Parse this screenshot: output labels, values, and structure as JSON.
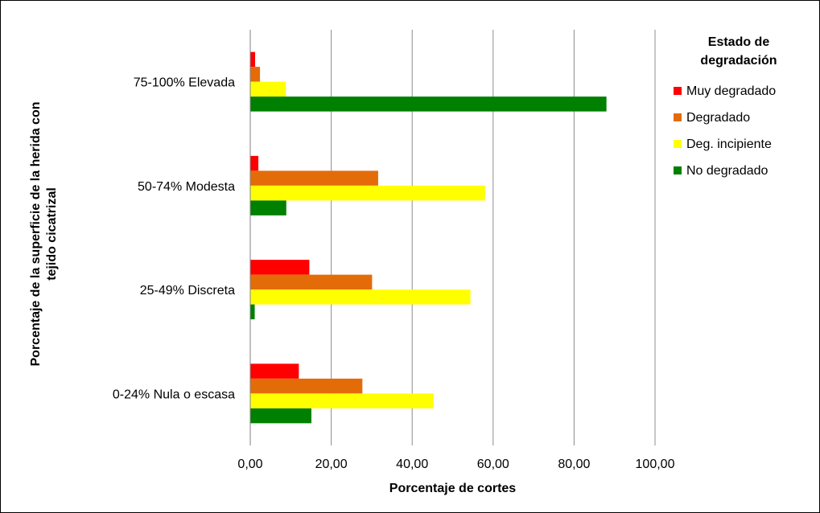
{
  "chart_data": {
    "type": "bar",
    "orientation": "horizontal",
    "categories": [
      "75-100% Elevada",
      "50-74% Modesta",
      "25-49% Discreta",
      "0-24% Nula o escasa"
    ],
    "series": [
      {
        "name": "Muy degradado",
        "color": "#ff0000",
        "values": [
          1.2,
          2.0,
          14.6,
          12.0
        ]
      },
      {
        "name": "Degradado",
        "color": "#e36c09",
        "values": [
          2.4,
          31.6,
          30.1,
          27.7
        ]
      },
      {
        "name": "Deg. incipiente",
        "color": "#ffff00",
        "values": [
          8.8,
          58.0,
          54.4,
          45.3
        ]
      },
      {
        "name": "No degradado",
        "color": "#008000",
        "values": [
          88.0,
          8.9,
          1.1,
          15.1
        ]
      }
    ],
    "xlabel": "Porcentaje de cortes",
    "ylabel_lines": [
      "Porcentaje de la superficie de la herida con",
      "tejido cicatrizal"
    ],
    "xlim": [
      0,
      100
    ],
    "xticks": [
      "0,00",
      "20,00",
      "40,00",
      "60,00",
      "80,00",
      "100,00"
    ],
    "grid": true,
    "legend_title_lines": [
      "Estado de",
      "degradación"
    ],
    "legend_position": "right"
  }
}
